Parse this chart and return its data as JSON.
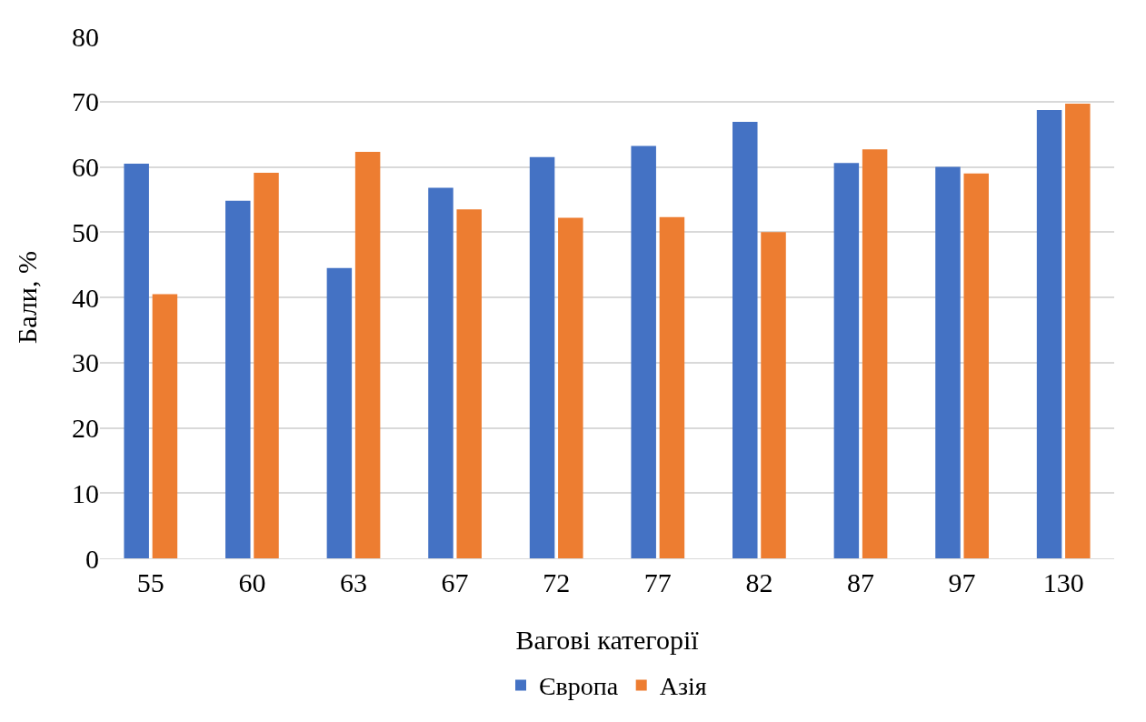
{
  "chart_data": {
    "type": "bar",
    "xlabel": "Вагові категорії",
    "ylabel": "Бали, %",
    "categories": [
      "55",
      "60",
      "63",
      "67",
      "72",
      "77",
      "82",
      "87",
      "97",
      "130"
    ],
    "series": [
      {
        "name": "Європа",
        "color": "#4472c4",
        "values": [
          60.5,
          54.8,
          44.5,
          56.8,
          61.5,
          63.2,
          66.9,
          60.6,
          60.0,
          68.7
        ]
      },
      {
        "name": "Азія",
        "color": "#ed7d31",
        "values": [
          40.5,
          59.1,
          62.3,
          53.5,
          52.2,
          52.3,
          50.0,
          62.7,
          59.0,
          69.7
        ]
      }
    ],
    "ylim": [
      0,
      80
    ],
    "yticks": [
      0,
      10,
      20,
      30,
      40,
      50,
      60,
      70,
      80
    ],
    "grid": "y",
    "legend": "bottom"
  }
}
